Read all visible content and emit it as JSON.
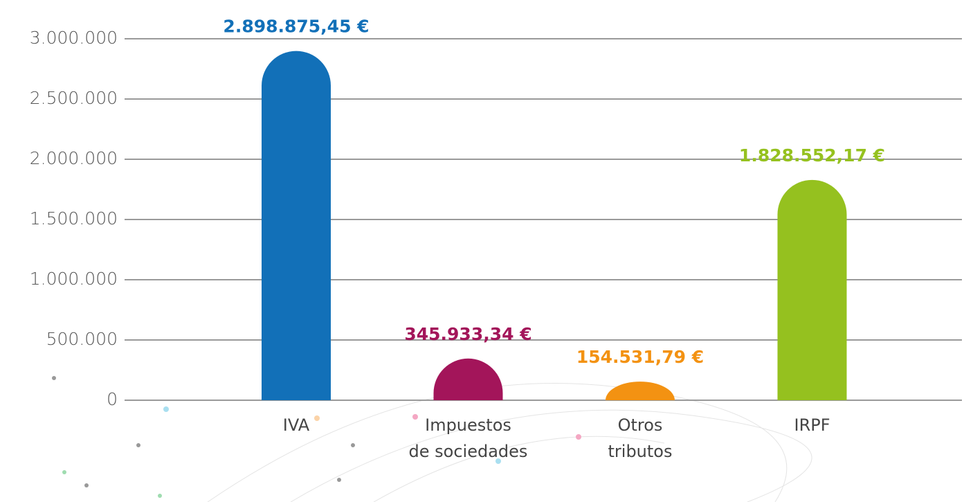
{
  "chart_data": {
    "type": "bar",
    "categories": [
      [
        "IVA"
      ],
      [
        "Impuestos",
        "de sociedades"
      ],
      [
        "Otros",
        "tributos"
      ],
      [
        "IRPF"
      ]
    ],
    "values": [
      2898875.45,
      345933.34,
      154531.79,
      1828552.17
    ],
    "value_labels": [
      "2.898.875,45 €",
      "345.933,34 €",
      "154.531,79 €",
      "1.828.552,17 €"
    ],
    "colors": [
      "#1270b8",
      "#a3155a",
      "#f39212",
      "#95c11f"
    ],
    "ylim": [
      0,
      3000000
    ],
    "yticks": [
      0,
      {
        "value": 500000,
        "label": "500.000"
      },
      {
        "value": 1000000,
        "label": "1.000.000"
      },
      {
        "value": 1500000,
        "label": "1.500.000"
      },
      {
        "value": 2000000,
        "label": "2.000.000"
      },
      {
        "value": 2500000,
        "label": "2.500.000"
      },
      {
        "value": 3000000,
        "label": "3.000.000"
      }
    ],
    "grid": true
  }
}
